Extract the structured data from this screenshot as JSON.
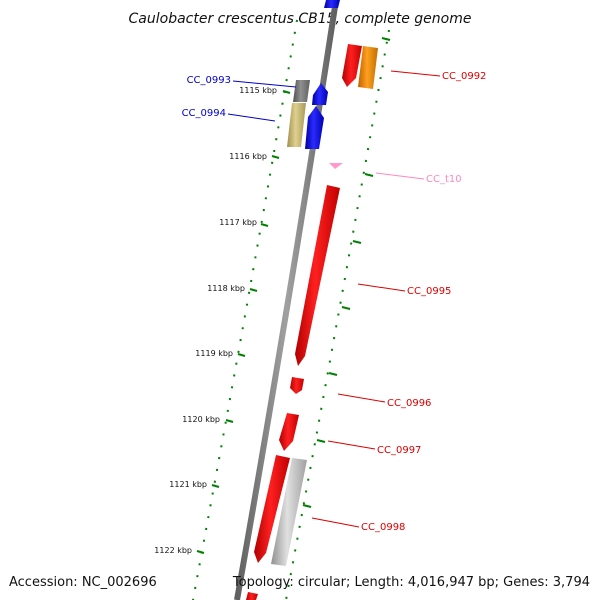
{
  "title": "Caulobacter crescentus CB15, complete genome",
  "footer": {
    "accession": "Accession: NC_002696",
    "summary": "Topology: circular; Length: 4,016,947 bp; Genes: 3,794"
  },
  "colors": {
    "backbone": "#808080",
    "tick": "#008000",
    "cds": "#ff0000",
    "cds_alt": "#ff8c00",
    "cds_blue": "#0000ff",
    "cds_gray": "#c0c0c0",
    "cds_dark": "#696969",
    "cds_olive": "#c8b870",
    "trna": "#ff99cc",
    "label_red": "#dd0000",
    "label_blue": "#0000cc",
    "label_pink": "#ff88bb"
  },
  "ticks": [
    {
      "label": "1115 kbp"
    },
    {
      "label": "1116 kbp"
    },
    {
      "label": "1117 kbp"
    },
    {
      "label": "1118 kbp"
    },
    {
      "label": "1119 kbp"
    },
    {
      "label": "1120 kbp"
    },
    {
      "label": "1121 kbp"
    },
    {
      "label": "1122 kbp"
    }
  ],
  "genes": [
    {
      "label": "CC_0992",
      "color": "#ff0000",
      "label_color": "#dd0000"
    },
    {
      "label": "CC_0993",
      "color": "#0000ff",
      "label_color": "#0000cc"
    },
    {
      "label": "CC_0994",
      "color": "#0000ff",
      "label_color": "#0000cc"
    },
    {
      "label": "CC_t10",
      "color": "#ff99cc",
      "label_color": "#ff88bb"
    },
    {
      "label": "CC_0995",
      "color": "#ff0000",
      "label_color": "#dd0000"
    },
    {
      "label": "CC_0996",
      "color": "#ff0000",
      "label_color": "#dd0000"
    },
    {
      "label": "CC_0997",
      "color": "#ff0000",
      "label_color": "#dd0000"
    },
    {
      "label": "CC_0998",
      "color": "#ff0000",
      "label_color": "#dd0000"
    }
  ]
}
